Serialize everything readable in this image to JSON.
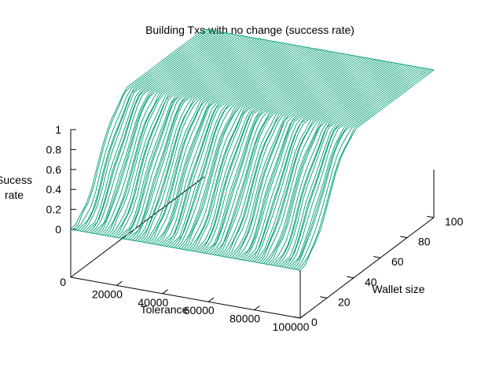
{
  "chart_data": {
    "type": "surface",
    "title": "Building Txs with no change (success rate)",
    "xlabel": "Tolerance",
    "ylabel": "Wallet size",
    "zlabel": [
      "Sucess",
      "rate"
    ],
    "x_range": [
      0,
      100000
    ],
    "y_range": [
      0,
      100
    ],
    "z_range": [
      0,
      1
    ],
    "x_ticks": [
      "20000",
      "40000",
      "60000",
      "80000",
      "100000"
    ],
    "y_ticks": [
      "0",
      "20",
      "40",
      "60",
      "80",
      "100"
    ],
    "z_ticks": [
      "0",
      "0.2",
      "0.4",
      "0.6",
      "0.8",
      "1"
    ],
    "z_base_label": "0",
    "series_color": "#009e73",
    "surface_profile": {
      "description_values": "success rate as a function of wallet size (rate rises roughly linearly from 0 at wallet size ~0 to 1 at wallet size ~40, then stays at 1), approximately independent of tolerance",
      "wallet_size": [
        0,
        5,
        10,
        15,
        20,
        25,
        30,
        35,
        40,
        50,
        60,
        70,
        80,
        90,
        100
      ],
      "success_rate": [
        0.0,
        0.02,
        0.1,
        0.25,
        0.45,
        0.62,
        0.78,
        0.9,
        1.0,
        1.0,
        1.0,
        1.0,
        1.0,
        1.0,
        1.0
      ]
    }
  }
}
